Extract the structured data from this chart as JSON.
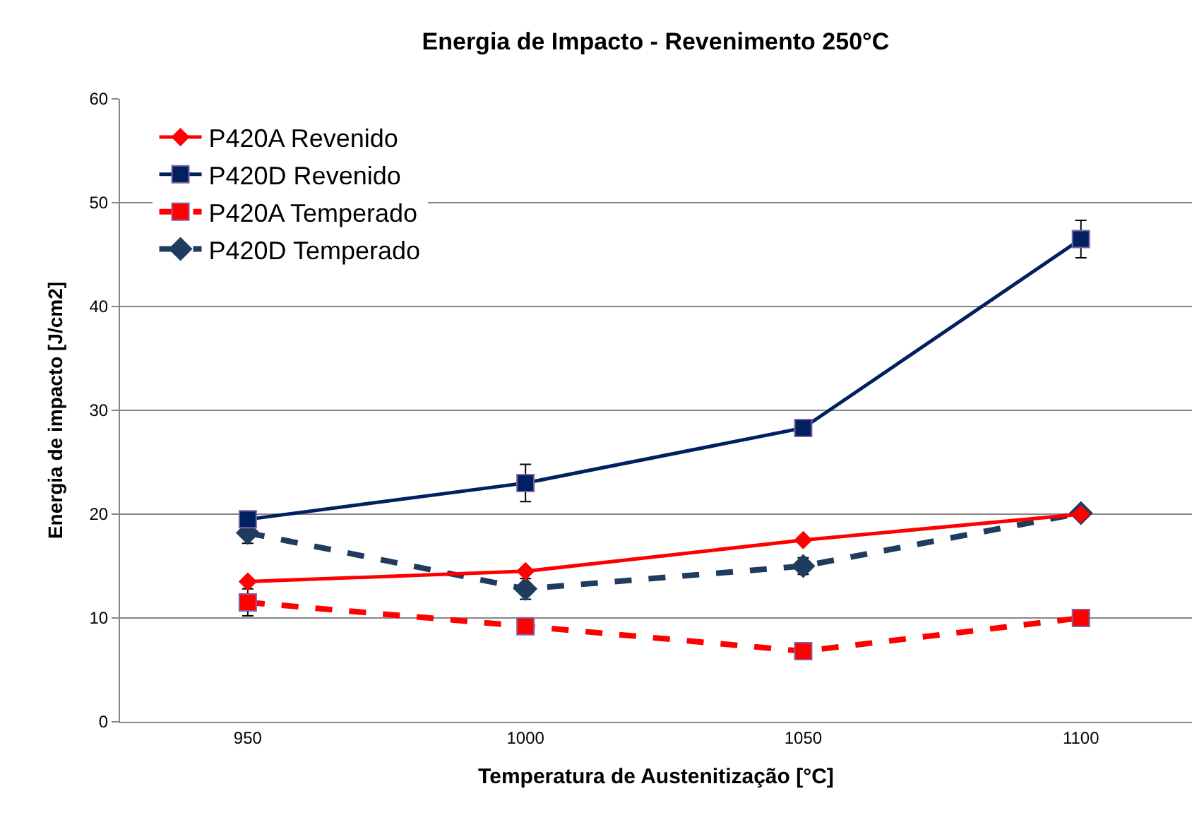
{
  "chart_data": {
    "type": "line",
    "title": "Energia de Impacto - Revenimento 250°C",
    "xlabel": "Temperatura de Austenitização [°C]",
    "ylabel": "Energia de impacto [J/cm2]",
    "categories": [
      "950",
      "1000",
      "1050",
      "1100"
    ],
    "series": [
      {
        "name": "P420A Revenido",
        "color": "#ff0000",
        "marker": "diamond",
        "line_style": "solid",
        "values": [
          13.5,
          14.5,
          17.5,
          20
        ]
      },
      {
        "name": "P420D Revenido",
        "color": "#002060",
        "marker": "square",
        "line_style": "solid",
        "values": [
          19.5,
          23,
          28.3,
          46.5
        ],
        "errors": [
          null,
          1.8,
          null,
          1.8
        ]
      },
      {
        "name": "P420A Temperado",
        "color": "#ff0000",
        "marker": "square",
        "line_style": "dashed",
        "values": [
          11.5,
          9.2,
          6.8,
          10
        ],
        "errors": [
          1.3,
          null,
          null,
          null
        ]
      },
      {
        "name": "P420D Temperado",
        "color": "#1f3c5f",
        "marker": "diamond",
        "line_style": "dashed",
        "values": [
          18.2,
          12.8,
          15,
          20.1
        ],
        "errors": [
          1,
          1,
          0.8,
          null
        ]
      }
    ],
    "ylim": [
      0,
      60
    ],
    "yticks": [
      0,
      10,
      20,
      30,
      40,
      50,
      60
    ],
    "grid": "y",
    "legend": "top left"
  }
}
